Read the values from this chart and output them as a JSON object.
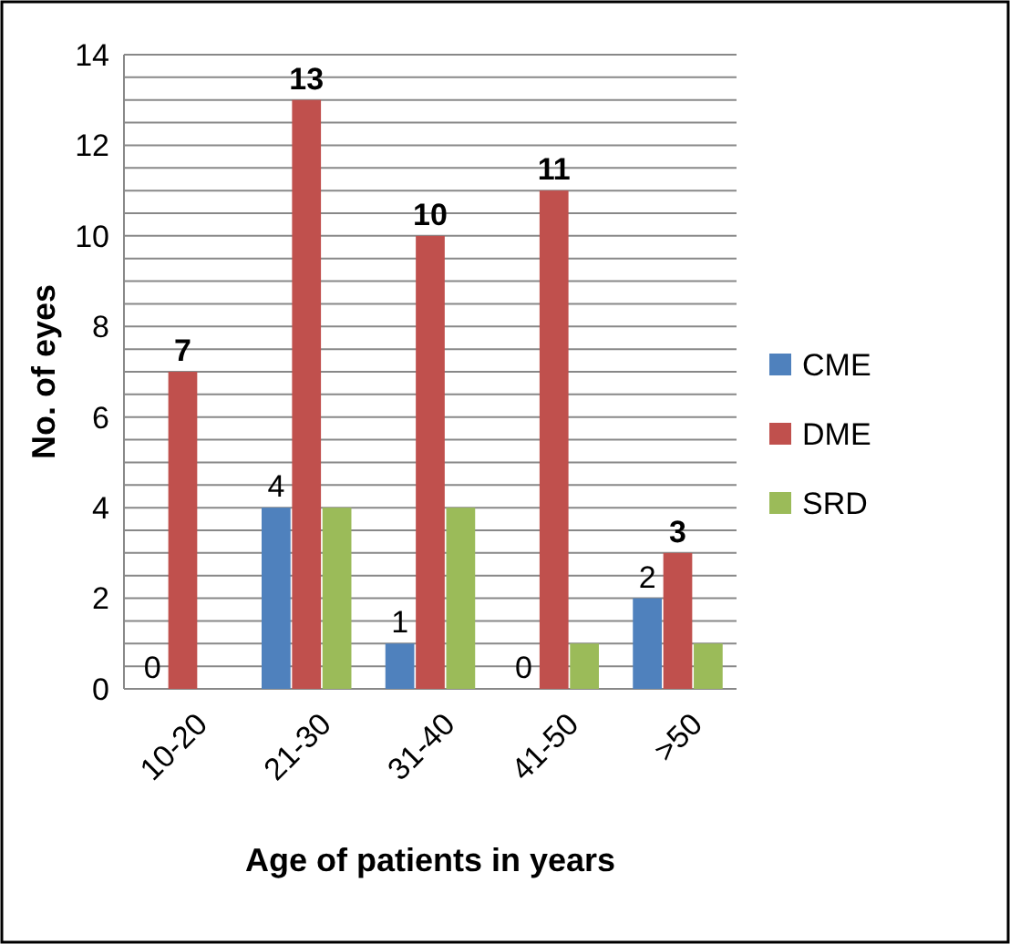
{
  "chart_data": {
    "type": "bar",
    "xlabel": "Age of patients in years",
    "ylabel": "No. of eyes",
    "categories": [
      "10-20",
      "21-30",
      "31-40",
      "41-50",
      ">50"
    ],
    "series": [
      {
        "name": "CME",
        "color": "#4f81bd",
        "values": [
          0,
          4,
          1,
          0,
          2
        ],
        "value_labels": [
          "0",
          "4",
          "1",
          "0",
          "2"
        ]
      },
      {
        "name": "DME",
        "color": "#c0504d",
        "values": [
          7,
          13,
          10,
          11,
          3
        ],
        "value_labels": [
          "7",
          "13",
          "10",
          "11",
          "3"
        ]
      },
      {
        "name": "SRD",
        "color": "#9bbb59",
        "values": [
          0,
          4,
          4,
          1,
          1
        ]
      }
    ],
    "ylim": [
      0,
      14
    ],
    "yticks": [
      0,
      {
        "value": 0.5,
        "label": null
      },
      2,
      {
        "value": 1,
        "label": null
      },
      {
        "value": 1.5,
        "label": null
      },
      {
        "value": 2.5,
        "label": null
      },
      {
        "value": 3,
        "label": null
      },
      {
        "value": 3.5,
        "label": null
      },
      4,
      {
        "value": 4.5,
        "label": null
      },
      {
        "value": 5,
        "label": null
      },
      {
        "value": 5.5,
        "label": null
      },
      6,
      {
        "value": 6.5,
        "label": null
      },
      {
        "value": 7,
        "label": null
      },
      {
        "value": 7.5,
        "label": null
      },
      8,
      {
        "value": 8.5,
        "label": null
      },
      {
        "value": 9,
        "label": null
      },
      {
        "value": 9.5,
        "label": null
      },
      10,
      {
        "value": 10.5,
        "label": null
      },
      {
        "value": 11,
        "label": null
      },
      {
        "value": 11.5,
        "label": null
      },
      12,
      {
        "value": 12.5,
        "label": null
      },
      {
        "value": 13,
        "label": null
      },
      {
        "value": 13.5,
        "label": null
      },
      14
    ],
    "grid": true,
    "legend": "right"
  }
}
